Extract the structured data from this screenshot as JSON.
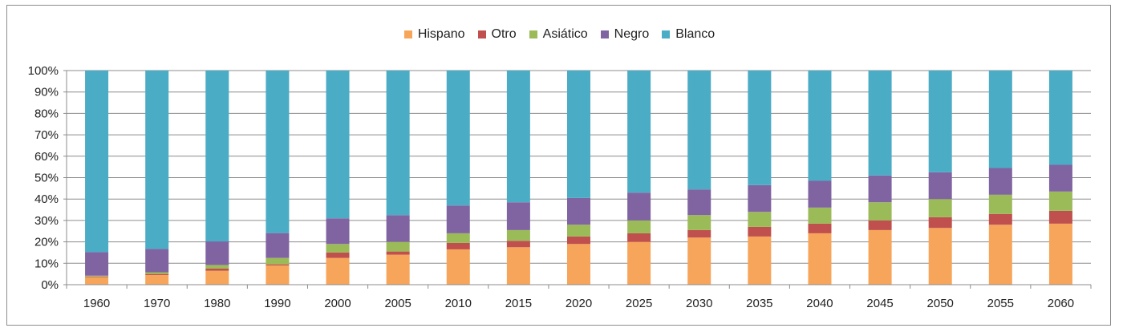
{
  "chart_data": {
    "type": "bar",
    "stacked": true,
    "title": "",
    "xlabel": "",
    "ylabel": "",
    "ylim": [
      0,
      100
    ],
    "yticks": [
      "0%",
      "10%",
      "20%",
      "30%",
      "40%",
      "50%",
      "60%",
      "70%",
      "80%",
      "90%",
      "100%"
    ],
    "grid": true,
    "legend_position": "top-center",
    "categories": [
      "1960",
      "1970",
      "1980",
      "1990",
      "2000",
      "2005",
      "2010",
      "2015",
      "2020",
      "2025",
      "2030",
      "2035",
      "2040",
      "2045",
      "2050",
      "2055",
      "2060"
    ],
    "series": [
      {
        "name": "Hispano",
        "color": "#f7a55a",
        "values": [
          3.5,
          4.5,
          6.5,
          9.0,
          12.5,
          14.0,
          16.5,
          17.5,
          19.0,
          20.0,
          22.0,
          22.5,
          24.0,
          25.5,
          26.5,
          28.0,
          28.5
        ]
      },
      {
        "name": "Otro",
        "color": "#c0504d",
        "values": [
          0.3,
          0.5,
          1.0,
          0.5,
          2.5,
          1.5,
          3.0,
          3.0,
          3.5,
          4.0,
          3.5,
          4.5,
          4.5,
          4.5,
          5.0,
          5.0,
          6.0
        ]
      },
      {
        "name": "Asiático",
        "color": "#9bbb59",
        "values": [
          0.4,
          0.8,
          1.7,
          3.0,
          4.0,
          4.5,
          4.5,
          5.0,
          5.5,
          6.0,
          7.0,
          7.0,
          7.5,
          8.5,
          8.5,
          9.0,
          9.0
        ]
      },
      {
        "name": "Negro",
        "color": "#8064a2",
        "values": [
          11.0,
          10.9,
          11.0,
          11.6,
          12.0,
          12.5,
          13.0,
          13.0,
          12.5,
          13.0,
          12.0,
          12.5,
          12.5,
          12.5,
          12.5,
          12.5,
          12.5
        ]
      },
      {
        "name": "Blanco",
        "color": "#4bacc6",
        "values": [
          84.8,
          83.3,
          79.8,
          75.9,
          69.0,
          67.5,
          63.0,
          61.5,
          59.5,
          57.0,
          55.5,
          53.5,
          51.5,
          49.0,
          47.5,
          45.5,
          44.0
        ]
      }
    ]
  }
}
